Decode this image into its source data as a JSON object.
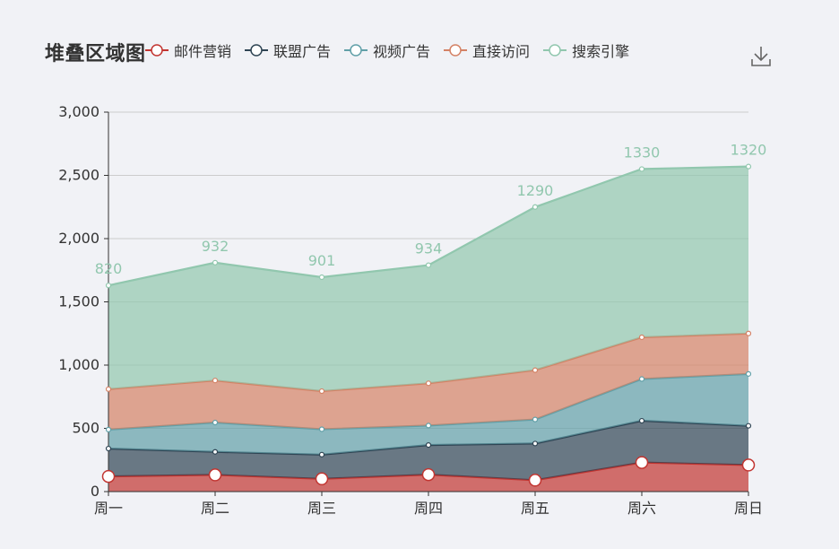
{
  "title": "堆叠区域图",
  "legend": [
    {
      "name": "邮件营销",
      "color": "#c23531"
    },
    {
      "name": "联盟广告",
      "color": "#2f4554"
    },
    {
      "name": "视频广告",
      "color": "#61a0a8"
    },
    {
      "name": "直接访问",
      "color": "#d48265"
    },
    {
      "name": "搜索引擎",
      "color": "#91c7ae"
    }
  ],
  "toolbox": {
    "download_icon": "download-icon"
  },
  "chart_data": {
    "type": "area",
    "stacked": true,
    "title": "堆叠区域图",
    "categories": [
      "周一",
      "周二",
      "周三",
      "周四",
      "周五",
      "周六",
      "周日"
    ],
    "ylim": [
      0,
      3000
    ],
    "yticks": [
      0,
      500,
      1000,
      1500,
      2000,
      2500,
      3000
    ],
    "ytick_labels": [
      "0",
      "500",
      "1,000",
      "1,500",
      "2,000",
      "2,500",
      "3,000"
    ],
    "grid": true,
    "legend_position": "top",
    "series": [
      {
        "name": "邮件营销",
        "values": [
          120,
          132,
          101,
          134,
          90,
          230,
          210
        ],
        "color": "#c23531"
      },
      {
        "name": "联盟广告",
        "values": [
          220,
          182,
          191,
          234,
          290,
          330,
          310
        ],
        "color": "#2f4554"
      },
      {
        "name": "视频广告",
        "values": [
          150,
          232,
          201,
          154,
          190,
          330,
          410
        ],
        "color": "#61a0a8"
      },
      {
        "name": "直接访问",
        "values": [
          320,
          332,
          301,
          334,
          390,
          330,
          320
        ],
        "color": "#d48265"
      },
      {
        "name": "搜索引擎",
        "values": [
          820,
          932,
          901,
          934,
          1290,
          1330,
          1320
        ],
        "color": "#91c7ae",
        "labels": [
          "820",
          "932",
          "901",
          "934",
          "1290",
          "1330",
          "1320"
        ]
      }
    ]
  }
}
